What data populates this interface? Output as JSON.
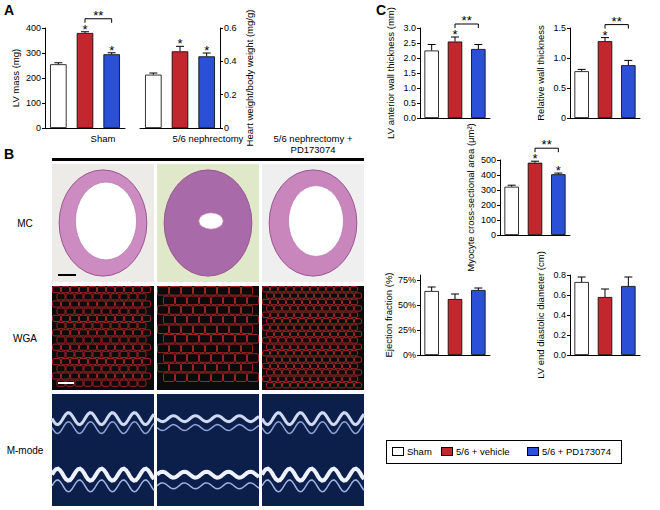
{
  "panel_labels": [
    "A",
    "B",
    "C"
  ],
  "groups": [
    {
      "name": "Sham",
      "color": "#ffffff"
    },
    {
      "name": "5/6 + vehicle",
      "color": "#c1272d"
    },
    {
      "name": "5/6 + PD173074",
      "color": "#2b4fd6"
    }
  ],
  "image_panel": {
    "columns": [
      "Sham",
      "5/6 nephrectomy",
      "5/6 nephrectomy + PD173074"
    ],
    "rows": [
      "MC",
      "WGA",
      "M-mode"
    ]
  },
  "chart_data": [
    {
      "type": "bar",
      "ylabel": "LV mass (mg)",
      "categories": [
        null,
        null,
        null
      ],
      "values": [
        255,
        380,
        295
      ],
      "errors": [
        6,
        5,
        6
      ],
      "colors": [
        "#ffffff",
        "#c1272d",
        "#2b4fd6"
      ],
      "ylim": [
        0,
        400
      ],
      "yticks": [
        0,
        100,
        200,
        300,
        400
      ],
      "grid": false,
      "tick_labels": "y",
      "annotations": [
        {
          "text": "*",
          "bar": 1
        },
        {
          "text": "*",
          "bar": 2
        },
        {
          "text": "**",
          "bars": [
            1,
            2
          ]
        }
      ]
    },
    {
      "type": "bar",
      "ylabel": "Heart weight/body weight (mg/g)",
      "categories": [
        null,
        null,
        null
      ],
      "values": [
        0.32,
        0.46,
        0.43
      ],
      "errors": [
        0.01,
        0.03,
        0.02
      ],
      "colors": [
        "#ffffff",
        "#c1272d",
        "#2b4fd6"
      ],
      "ylim": [
        0,
        0.6
      ],
      "yticks": [
        0,
        0.2,
        0.4,
        0.6
      ],
      "grid": false,
      "tick_labels": "y",
      "annotations": [
        {
          "text": "*",
          "bar": 1
        },
        {
          "text": "*",
          "bar": 2
        }
      ]
    },
    {
      "type": "bar",
      "ylabel": "LV anterior wall thickness (mm)",
      "categories": [
        null,
        null,
        null
      ],
      "values": [
        2.25,
        2.55,
        2.3
      ],
      "errors": [
        0.2,
        0.15,
        0.15
      ],
      "colors": [
        "#ffffff",
        "#c1272d",
        "#2b4fd6"
      ],
      "ylim": [
        0,
        3
      ],
      "yticks": [
        {
          "value": 0,
          "label": "0.0"
        },
        0.5,
        {
          "value": 1,
          "label": "1.0"
        },
        1.5,
        {
          "value": 2,
          "label": "2.0"
        },
        2.5,
        {
          "value": 3,
          "label": "3.0"
        }
      ],
      "grid": false,
      "tick_labels": "y",
      "annotations": [
        {
          "text": "*",
          "bar": 1
        },
        {
          "text": "**",
          "bars": [
            1,
            2
          ]
        }
      ]
    },
    {
      "type": "bar",
      "ylabel": "Relative wall thickness",
      "categories": [
        null,
        null,
        null
      ],
      "values": [
        0.78,
        1.28,
        0.88
      ],
      "errors": [
        0.03,
        0.06,
        0.08
      ],
      "colors": [
        "#ffffff",
        "#c1272d",
        "#2b4fd6"
      ],
      "ylim": [
        0,
        1.5
      ],
      "yticks": [
        0,
        0.5,
        {
          "value": 1,
          "label": "1.0"
        },
        1.5
      ],
      "grid": false,
      "tick_labels": "y",
      "annotations": [
        {
          "text": "*",
          "bar": 1
        },
        {
          "text": "**",
          "bars": [
            1,
            2
          ]
        }
      ]
    },
    {
      "type": "bar",
      "ylabel": "Myocyte cross-sectional area (μm²)",
      "categories": [
        null,
        null,
        null
      ],
      "values": [
        322,
        482,
        405
      ],
      "errors": [
        10,
        10,
        8
      ],
      "colors": [
        "#ffffff",
        "#c1272d",
        "#2b4fd6"
      ],
      "ylim": [
        0,
        500
      ],
      "yticks": [
        0,
        100,
        200,
        300,
        400,
        500
      ],
      "grid": false,
      "tick_labels": "y",
      "annotations": [
        {
          "text": "*",
          "bar": 1
        },
        {
          "text": "*",
          "bar": 2
        },
        {
          "text": "**",
          "bars": [
            1,
            2
          ]
        }
      ]
    },
    {
      "type": "bar",
      "ylabel": "Ejection fraction (%)",
      "categories": [
        null,
        null,
        null
      ],
      "values": [
        64,
        56,
        65
      ],
      "errors": [
        4,
        5,
        2
      ],
      "colors": [
        "#ffffff",
        "#c1272d",
        "#2b4fd6"
      ],
      "ylim": [
        0,
        80
      ],
      "yticks": [
        {
          "value": 0,
          "label": "0%"
        },
        {
          "value": 25,
          "label": "25%"
        },
        {
          "value": 50,
          "label": "50%"
        },
        {
          "value": 75,
          "label": "75%"
        }
      ],
      "grid": false,
      "tick_labels": "y"
    },
    {
      "type": "bar",
      "ylabel": "LV end diastolic diameter (cm)",
      "categories": [
        null,
        null,
        null
      ],
      "values": [
        0.73,
        0.58,
        0.69
      ],
      "errors": [
        0.05,
        0.08,
        0.09
      ],
      "colors": [
        "#ffffff",
        "#c1272d",
        "#2b4fd6"
      ],
      "ylim": [
        0,
        0.8
      ],
      "yticks": [
        {
          "value": 0,
          "label": "0.0"
        },
        0.2,
        0.4,
        0.6,
        0.8
      ],
      "grid": false,
      "tick_labels": "y"
    }
  ]
}
